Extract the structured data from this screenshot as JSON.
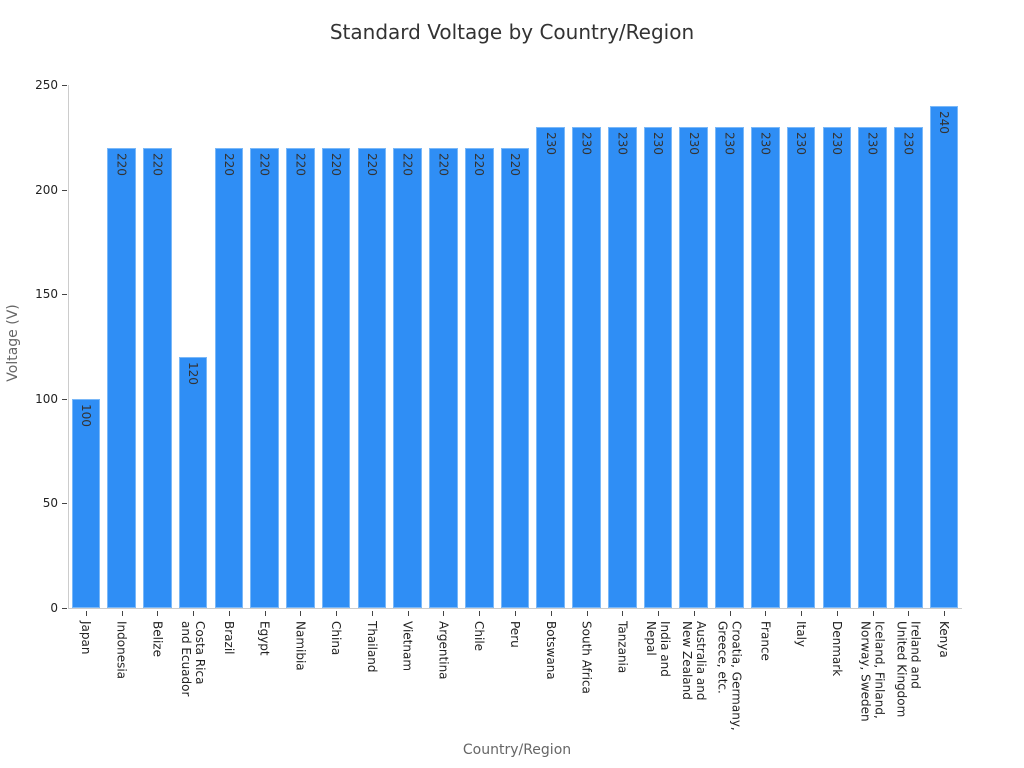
{
  "chart_data": {
    "type": "bar",
    "title": "Standard Voltage by Country/Region",
    "xlabel": "Country/Region",
    "ylabel": "Voltage (V)",
    "ylim": [
      0,
      250
    ],
    "yticks": [
      0,
      50,
      100,
      150,
      200,
      250
    ],
    "grid": false,
    "legend": null,
    "bar_color": "#2f8ef5",
    "categories": [
      "Japan",
      "Indonesia",
      "Belize",
      "Costa Rica\nand Ecuador",
      "Brazil",
      "Egypt",
      "Namibia",
      "China",
      "Thailand",
      "Vietnam",
      "Argentina",
      "Chile",
      "Peru",
      "Botswana",
      "South Africa",
      "Tanzania",
      "India and\nNepal",
      "Australia and\nNew Zealand",
      "Croatia, Germany,\nGreece, etc.",
      "France",
      "Italy",
      "Denmark",
      "Iceland, Finland,\nNorway, Sweden",
      "Ireland and\nUnited Kingdom",
      "Kenya"
    ],
    "values": [
      100,
      220,
      220,
      120,
      220,
      220,
      220,
      220,
      220,
      220,
      220,
      220,
      220,
      230,
      230,
      230,
      230,
      230,
      230,
      230,
      230,
      230,
      230,
      230,
      240
    ]
  }
}
